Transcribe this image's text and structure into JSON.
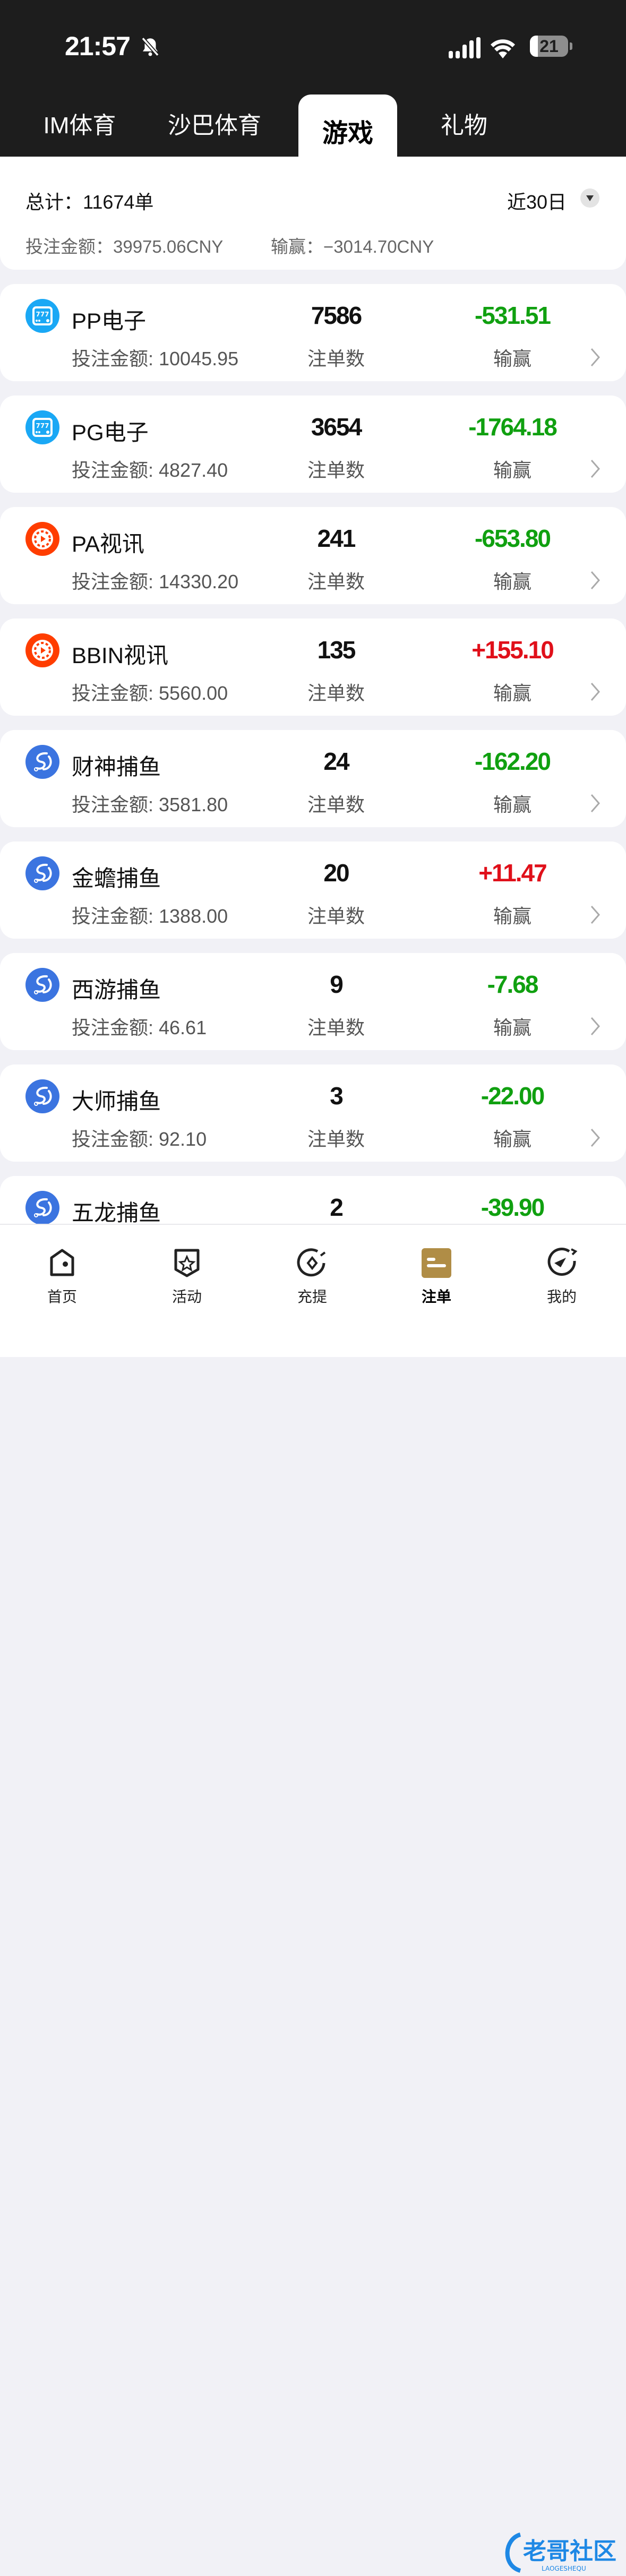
{
  "status_bar": {
    "time": "21:57",
    "battery": "21",
    "icons": [
      "bell-slash-icon",
      "signal-icon",
      "wifi-icon",
      "battery-icon"
    ]
  },
  "tabs": [
    {
      "label": "IM体育"
    },
    {
      "label": "沙巴体育"
    },
    {
      "label": "游戏",
      "active": true
    },
    {
      "label": "礼物"
    }
  ],
  "summary": {
    "total": "总计：11674单",
    "range": "近30日",
    "bet_amount": "投注金额：39975.06CNY",
    "win_loss": "输赢：−3014.70CNY"
  },
  "colors": {
    "win": "#e0101a",
    "loss": "#10a010",
    "accent": "#b08d46"
  },
  "games": [
    {
      "name": "PP电子",
      "icon": "slot-777-icon",
      "bet": "投注金额: 10045.95",
      "count": "7586",
      "count_label": "注单数",
      "result": "-531.51",
      "result_label": "输赢",
      "positive": false
    },
    {
      "name": "PG电子",
      "icon": "slot-777-icon",
      "bet": "投注金额: 4827.40",
      "count": "3654",
      "count_label": "注单数",
      "result": "-1764.18",
      "result_label": "输赢",
      "positive": false
    },
    {
      "name": "PA视讯",
      "icon": "live-video-icon",
      "bet": "投注金额: 14330.20",
      "count": "241",
      "count_label": "注单数",
      "result": "-653.80",
      "result_label": "输赢",
      "positive": false
    },
    {
      "name": "BBIN视讯",
      "icon": "live-video-icon",
      "bet": "投注金额: 5560.00",
      "count": "135",
      "count_label": "注单数",
      "result": "+155.10",
      "result_label": "输赢",
      "positive": true
    },
    {
      "name": "财神捕鱼",
      "icon": "fishing-icon",
      "bet": "投注金额: 3581.80",
      "count": "24",
      "count_label": "注单数",
      "result": "-162.20",
      "result_label": "输赢",
      "positive": false
    },
    {
      "name": "金蟾捕鱼",
      "icon": "fishing-icon",
      "bet": "投注金额: 1388.00",
      "count": "20",
      "count_label": "注单数",
      "result": "+11.47",
      "result_label": "输赢",
      "positive": true
    },
    {
      "name": "西游捕鱼",
      "icon": "fishing-icon",
      "bet": "投注金额: 46.61",
      "count": "9",
      "count_label": "注单数",
      "result": "-7.68",
      "result_label": "输赢",
      "positive": false
    },
    {
      "name": "大师捕鱼",
      "icon": "fishing-icon",
      "bet": "投注金额: 92.10",
      "count": "3",
      "count_label": "注单数",
      "result": "-22.00",
      "result_label": "输赢",
      "positive": false
    },
    {
      "name": "五龙捕鱼",
      "icon": "fishing-icon",
      "bet": "",
      "count": "2",
      "count_label": "",
      "result": "-39.90",
      "result_label": "",
      "positive": false
    }
  ],
  "tabbar": [
    {
      "label": "首页",
      "icon": "home-icon"
    },
    {
      "label": "活动",
      "icon": "activity-star-icon"
    },
    {
      "label": "充提",
      "icon": "deposit-icon"
    },
    {
      "label": "注单",
      "icon": "orders-icon",
      "active": true
    },
    {
      "label": "我的",
      "icon": "profile-icon"
    }
  ],
  "watermark": "老哥社区 LAOGESHEQU"
}
